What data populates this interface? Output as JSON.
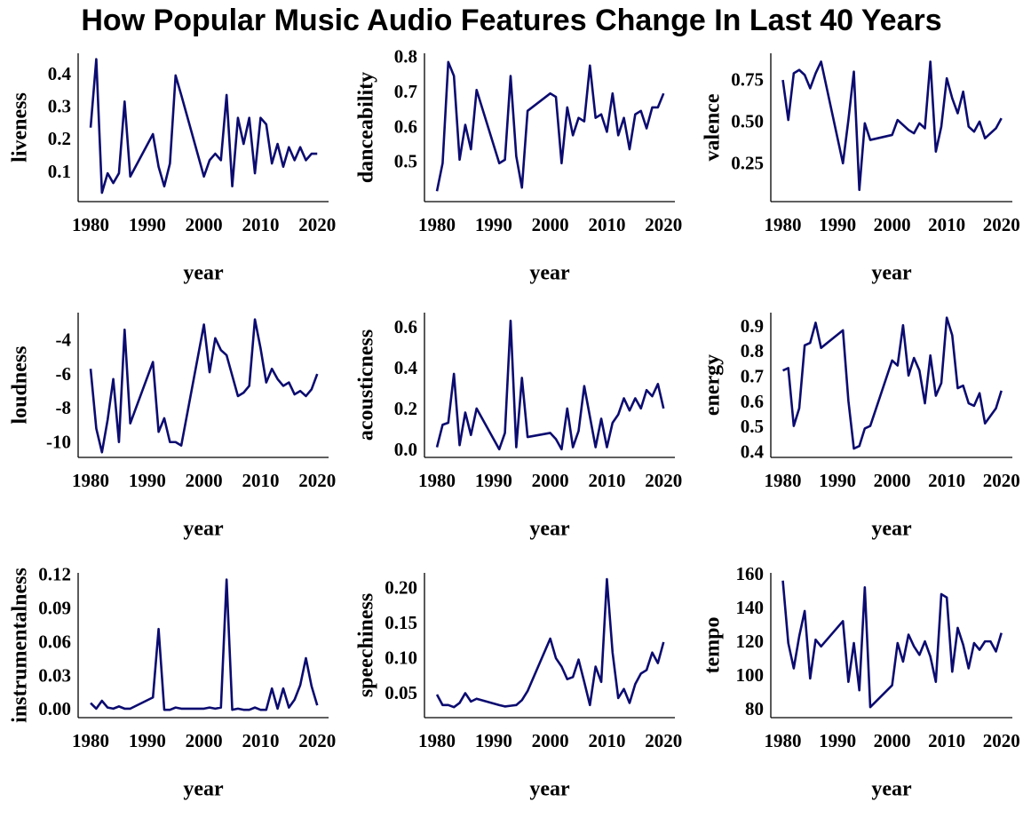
{
  "title": "How Popular Music Audio Features Change In Last 40 Years",
  "chart_data": [
    {
      "type": "line",
      "ylabel": "liveness",
      "xlabel": "year",
      "color": "#0b0b70",
      "x": [
        1980,
        1981,
        1982,
        1983,
        1984,
        1985,
        1986,
        1987,
        1991,
        1992,
        1993,
        1994,
        1995,
        1996,
        2000,
        2001,
        2002,
        2003,
        2004,
        2005,
        2006,
        2007,
        2008,
        2009,
        2010,
        2011,
        2012,
        2013,
        2014,
        2015,
        2016,
        2017,
        2018,
        2019,
        2020
      ],
      "values": [
        0.24,
        0.45,
        0.04,
        0.1,
        0.07,
        0.1,
        0.32,
        0.09,
        0.22,
        0.12,
        0.06,
        0.13,
        0.4,
        0.34,
        0.09,
        0.14,
        0.16,
        0.14,
        0.34,
        0.06,
        0.27,
        0.19,
        0.27,
        0.1,
        0.27,
        0.25,
        0.13,
        0.19,
        0.12,
        0.18,
        0.14,
        0.18,
        0.14,
        0.16,
        0.16
      ],
      "xlim": [
        1977.8,
        2022
      ],
      "xticks": [
        1980,
        1990,
        2000,
        2010,
        2020
      ],
      "ylim": [
        0.013,
        0.468
      ],
      "yticks": [
        0.1,
        0.2,
        0.3,
        0.4
      ]
    },
    {
      "type": "line",
      "ylabel": "danceability",
      "xlabel": "year",
      "color": "#0b0b70",
      "x": [
        1980,
        1981,
        1982,
        1983,
        1984,
        1985,
        1986,
        1987,
        1991,
        1992,
        1993,
        1994,
        1995,
        1996,
        2000,
        2001,
        2002,
        2003,
        2004,
        2005,
        2006,
        2007,
        2008,
        2009,
        2010,
        2011,
        2012,
        2013,
        2014,
        2015,
        2016,
        2017,
        2018,
        2019,
        2020
      ],
      "values": [
        0.42,
        0.5,
        0.79,
        0.75,
        0.51,
        0.61,
        0.54,
        0.71,
        0.5,
        0.51,
        0.75,
        0.52,
        0.43,
        0.65,
        0.7,
        0.69,
        0.5,
        0.66,
        0.58,
        0.63,
        0.62,
        0.78,
        0.63,
        0.64,
        0.59,
        0.7,
        0.58,
        0.63,
        0.54,
        0.64,
        0.65,
        0.6,
        0.66,
        0.66,
        0.7
      ],
      "xlim": [
        1977.8,
        2022
      ],
      "xticks": [
        1980,
        1990,
        2000,
        2010,
        2020
      ],
      "ylim": [
        0.39,
        0.815
      ],
      "yticks": [
        0.5,
        0.6,
        0.7,
        0.8
      ]
    },
    {
      "type": "line",
      "ylabel": "valence",
      "xlabel": "year",
      "color": "#0b0b70",
      "x": [
        1980,
        1981,
        1982,
        1983,
        1984,
        1985,
        1986,
        1987,
        1991,
        1992,
        1993,
        1994,
        1995,
        1996,
        2000,
        2001,
        2002,
        2003,
        2004,
        2005,
        2006,
        2007,
        2008,
        2009,
        2010,
        2011,
        2012,
        2013,
        2014,
        2015,
        2016,
        2017,
        2018,
        2019,
        2020
      ],
      "values": [
        0.76,
        0.52,
        0.8,
        0.82,
        0.79,
        0.71,
        0.8,
        0.87,
        0.26,
        0.52,
        0.81,
        0.1,
        0.5,
        0.4,
        0.43,
        0.52,
        0.49,
        0.46,
        0.44,
        0.5,
        0.47,
        0.87,
        0.33,
        0.48,
        0.77,
        0.65,
        0.56,
        0.69,
        0.48,
        0.45,
        0.51,
        0.41,
        0.44,
        0.47,
        0.53
      ],
      "xlim": [
        1977.8,
        2022
      ],
      "xticks": [
        1980,
        1990,
        2000,
        2010,
        2020
      ],
      "ylim": [
        0.03,
        0.92
      ],
      "yticks": [
        0.25,
        {
          "value": 0.5,
          "label": "0.50"
        },
        0.75
      ]
    },
    {
      "type": "line",
      "ylabel": "loudness",
      "xlabel": "year",
      "color": "#0b0b70",
      "x": [
        1980,
        1981,
        1982,
        1983,
        1984,
        1985,
        1986,
        1987,
        1991,
        1992,
        1993,
        1994,
        1995,
        1996,
        2000,
        2001,
        2002,
        2003,
        2004,
        2005,
        2006,
        2007,
        2008,
        2009,
        2010,
        2011,
        2012,
        2013,
        2014,
        2015,
        2016,
        2017,
        2018,
        2019,
        2020
      ],
      "values": [
        -5.6,
        -9.1,
        -10.5,
        -8.6,
        -6.2,
        -9.9,
        -3.3,
        -8.8,
        -5.2,
        -9.3,
        -8.5,
        -9.9,
        -9.9,
        -10.1,
        -3.0,
        -5.8,
        -3.8,
        -4.5,
        -4.8,
        -6.0,
        -7.2,
        -7.0,
        -6.6,
        -2.7,
        -4.4,
        -6.4,
        -5.6,
        -6.2,
        -6.6,
        -6.4,
        -7.1,
        -6.9,
        -7.2,
        -6.8,
        -5.9
      ],
      "xlim": [
        1977.8,
        2022
      ],
      "xticks": [
        1980,
        1990,
        2000,
        2010,
        2020
      ],
      "ylim": [
        -10.8,
        -2.3
      ],
      "yticks": [
        -10,
        -8,
        -6,
        -4
      ]
    },
    {
      "type": "line",
      "ylabel": "acousticness",
      "xlabel": "year",
      "color": "#0b0b70",
      "x": [
        1980,
        1981,
        1982,
        1983,
        1984,
        1985,
        1986,
        1987,
        1991,
        1992,
        1993,
        1994,
        1995,
        1996,
        2000,
        2001,
        2002,
        2003,
        2004,
        2005,
        2006,
        2007,
        2008,
        2009,
        2010,
        2011,
        2012,
        2013,
        2014,
        2015,
        2016,
        2017,
        2018,
        2019,
        2020
      ],
      "values": [
        0.02,
        0.13,
        0.14,
        0.38,
        0.03,
        0.19,
        0.08,
        0.21,
        0.01,
        0.09,
        0.64,
        0.02,
        0.36,
        0.07,
        0.09,
        0.06,
        0.01,
        0.21,
        0.02,
        0.1,
        0.32,
        0.17,
        0.02,
        0.16,
        0.02,
        0.14,
        0.18,
        0.26,
        0.2,
        0.26,
        0.21,
        0.3,
        0.27,
        0.33,
        0.21
      ],
      "xlim": [
        1977.8,
        2022
      ],
      "xticks": [
        1980,
        1990,
        2000,
        2010,
        2020
      ],
      "ylim": [
        -0.03,
        0.68
      ],
      "yticks": [
        {
          "value": 0,
          "label": "0.0"
        },
        0.2,
        0.4,
        0.6
      ]
    },
    {
      "type": "line",
      "ylabel": "energy",
      "xlabel": "year",
      "color": "#0b0b70",
      "x": [
        1980,
        1981,
        1982,
        1983,
        1984,
        1985,
        1986,
        1987,
        1991,
        1992,
        1993,
        1994,
        1995,
        1996,
        2000,
        2001,
        2002,
        2003,
        2004,
        2005,
        2006,
        2007,
        2008,
        2009,
        2010,
        2011,
        2012,
        2013,
        2014,
        2015,
        2016,
        2017,
        2018,
        2019,
        2020
      ],
      "values": [
        0.73,
        0.74,
        0.51,
        0.58,
        0.83,
        0.84,
        0.92,
        0.82,
        0.89,
        0.61,
        0.42,
        0.43,
        0.5,
        0.51,
        0.77,
        0.75,
        0.91,
        0.71,
        0.78,
        0.73,
        0.6,
        0.79,
        0.63,
        0.68,
        0.94,
        0.87,
        0.66,
        0.67,
        0.6,
        0.59,
        0.64,
        0.52,
        0.55,
        0.58,
        0.65
      ],
      "xlim": [
        1977.8,
        2022
      ],
      "xticks": [
        1980,
        1990,
        2000,
        2010,
        2020
      ],
      "ylim": [
        0.385,
        0.96
      ],
      "yticks": [
        0.4,
        0.5,
        0.6,
        0.7,
        0.8,
        0.9
      ]
    },
    {
      "type": "line",
      "ylabel": "instrumentalness",
      "xlabel": "year",
      "color": "#0b0b70",
      "x": [
        1980,
        1981,
        1982,
        1983,
        1984,
        1985,
        1986,
        1987,
        1991,
        1992,
        1993,
        1994,
        1995,
        1996,
        2000,
        2001,
        2002,
        2003,
        2004,
        2005,
        2006,
        2007,
        2008,
        2009,
        2010,
        2011,
        2012,
        2013,
        2014,
        2015,
        2016,
        2017,
        2018,
        2019,
        2020
      ],
      "values": [
        0.007,
        0.002,
        0.009,
        0.003,
        0.002,
        0.004,
        0.002,
        0.002,
        0.012,
        0.073,
        0.001,
        0.001,
        0.003,
        0.002,
        0.002,
        0.003,
        0.002,
        0.003,
        0.117,
        0.001,
        0.002,
        0.001,
        0.001,
        0.003,
        0.001,
        0.001,
        0.02,
        0.002,
        0.02,
        0.003,
        0.01,
        0.023,
        0.047,
        0.022,
        0.005
      ],
      "xlim": [
        1977.8,
        2022
      ],
      "xticks": [
        1980,
        1990,
        2000,
        2010,
        2020
      ],
      "ylim": [
        -0.006,
        0.123
      ],
      "yticks": [
        {
          "value": 0,
          "label": "0.00"
        },
        0.03,
        0.06,
        0.09,
        0.12
      ]
    },
    {
      "type": "line",
      "ylabel": "speechiness",
      "xlabel": "year",
      "color": "#0b0b70",
      "x": [
        1980,
        1981,
        1982,
        1983,
        1984,
        1985,
        1986,
        1987,
        1991,
        1992,
        1993,
        1994,
        1995,
        1996,
        2000,
        2001,
        2002,
        2003,
        2004,
        2005,
        2006,
        2007,
        2008,
        2009,
        2010,
        2011,
        2012,
        2013,
        2014,
        2015,
        2016,
        2017,
        2018,
        2019,
        2020
      ],
      "values": [
        0.05,
        0.035,
        0.035,
        0.032,
        0.038,
        0.052,
        0.04,
        0.044,
        0.035,
        0.033,
        0.034,
        0.035,
        0.042,
        0.055,
        0.13,
        0.102,
        0.09,
        0.072,
        0.075,
        0.1,
        0.068,
        0.035,
        0.09,
        0.068,
        0.215,
        0.11,
        0.045,
        0.058,
        0.038,
        0.065,
        0.08,
        0.085,
        0.11,
        0.095,
        0.125
      ],
      "xlim": [
        1977.8,
        2022
      ],
      "xticks": [
        1980,
        1990,
        2000,
        2010,
        2020
      ],
      "ylim": [
        0.017,
        0.224
      ],
      "yticks": [
        0.05,
        {
          "value": 0.1,
          "label": "0.10"
        },
        0.15,
        {
          "value": 0.2,
          "label": "0.20"
        }
      ]
    },
    {
      "type": "line",
      "ylabel": "tempo",
      "xlabel": "year",
      "color": "#0b0b70",
      "x": [
        1980,
        1981,
        1982,
        1983,
        1984,
        1985,
        1986,
        1987,
        1991,
        1992,
        1993,
        1994,
        1995,
        1996,
        2000,
        2001,
        2002,
        2003,
        2004,
        2005,
        2006,
        2007,
        2008,
        2009,
        2010,
        2011,
        2012,
        2013,
        2014,
        2015,
        2016,
        2017,
        2018,
        2019,
        2020
      ],
      "values": [
        157,
        120,
        105,
        124,
        139,
        99,
        122,
        118,
        133,
        97,
        120,
        92,
        153,
        82,
        95,
        120,
        109,
        125,
        118,
        113,
        121,
        112,
        97,
        149,
        147,
        103,
        129,
        119,
        105,
        120,
        116,
        121,
        121,
        115,
        126
      ],
      "xlim": [
        1977.8,
        2022
      ],
      "xticks": [
        1980,
        1990,
        2000,
        2010,
        2020
      ],
      "ylim": [
        75.8,
        161.6
      ],
      "yticks": [
        80,
        100,
        120,
        140,
        160
      ]
    }
  ]
}
